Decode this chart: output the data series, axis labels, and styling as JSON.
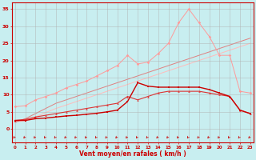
{
  "xlabel": "Vent moyen/en rafales ( km/h )",
  "background_color": "#c8eef0",
  "grid_color": "#b0b0b0",
  "x_values": [
    0,
    1,
    2,
    3,
    4,
    5,
    6,
    7,
    8,
    9,
    10,
    11,
    12,
    13,
    14,
    15,
    16,
    17,
    18,
    19,
    20,
    21,
    22,
    23
  ],
  "line_dark_red_y": [
    2.5,
    2.5,
    3.0,
    3.2,
    3.5,
    3.8,
    4.0,
    4.3,
    4.6,
    5.0,
    5.5,
    8.0,
    13.5,
    12.5,
    12.2,
    12.2,
    12.2,
    12.2,
    12.2,
    11.5,
    10.5,
    9.5,
    5.5,
    4.5
  ],
  "line_dark_red_color": "#cc0000",
  "line_med_red_y": [
    2.5,
    2.8,
    3.5,
    4.0,
    4.5,
    5.0,
    5.5,
    6.0,
    6.5,
    7.0,
    7.5,
    9.5,
    8.5,
    9.5,
    10.5,
    11.0,
    11.0,
    11.0,
    11.0,
    10.5,
    10.0,
    9.5,
    5.5,
    4.5
  ],
  "line_med_red_color": "#dd3333",
  "line_light_pink_y": [
    6.5,
    6.8,
    8.5,
    9.5,
    10.5,
    12.0,
    13.0,
    14.0,
    15.5,
    17.0,
    18.5,
    21.5,
    19.0,
    19.5,
    22.0,
    25.0,
    31.0,
    35.0,
    31.0,
    27.0,
    21.5,
    21.5,
    11.0,
    10.5
  ],
  "line_light_pink_color": "#ff9999",
  "line_diag1_y": [
    2.0,
    3.0,
    4.5,
    6.0,
    7.5,
    8.5,
    9.5,
    10.5,
    11.5,
    12.5,
    13.5,
    14.5,
    15.5,
    16.5,
    17.5,
    18.5,
    19.5,
    20.5,
    21.5,
    22.5,
    23.5,
    24.5,
    25.5,
    26.5
  ],
  "line_diag1_color": "#e08080",
  "line_diag2_y": [
    2.0,
    2.5,
    3.5,
    4.8,
    6.0,
    7.0,
    8.0,
    9.0,
    10.0,
    11.0,
    12.0,
    13.0,
    14.0,
    15.0,
    16.0,
    17.0,
    18.0,
    19.0,
    20.0,
    21.0,
    22.0,
    23.0,
    24.0,
    25.0
  ],
  "line_diag2_color": "#ffbbbb",
  "ylim": [
    -4,
    37
  ],
  "xlim": [
    -0.3,
    23.3
  ],
  "yticks": [
    0,
    5,
    10,
    15,
    20,
    25,
    30,
    35
  ],
  "xticks": [
    0,
    1,
    2,
    3,
    4,
    5,
    6,
    7,
    8,
    9,
    10,
    11,
    12,
    13,
    14,
    15,
    16,
    17,
    18,
    19,
    20,
    21,
    22,
    23
  ]
}
